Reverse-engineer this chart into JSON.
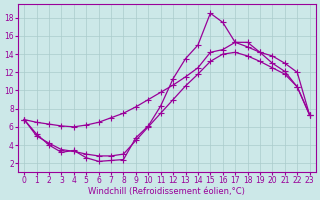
{
  "background_color": "#cce8e8",
  "grid_color": "#aacccc",
  "line_color": "#990099",
  "marker_style": "+",
  "marker_size": 4,
  "line_width": 0.9,
  "xlabel": "Windchill (Refroidissement éolien,°C)",
  "xlabel_fontsize": 6.0,
  "tick_fontsize": 5.5,
  "xlim": [
    -0.5,
    23.5
  ],
  "ylim": [
    1.0,
    19.5
  ],
  "yticks": [
    2,
    4,
    6,
    8,
    10,
    12,
    14,
    16,
    18
  ],
  "xticks": [
    0,
    1,
    2,
    3,
    4,
    5,
    6,
    7,
    8,
    9,
    10,
    11,
    12,
    13,
    14,
    15,
    16,
    17,
    18,
    19,
    20,
    21,
    22,
    23
  ],
  "curve_jagged_x": [
    0,
    1,
    2,
    3,
    4,
    5,
    6,
    7,
    8,
    9,
    10,
    11,
    12,
    13,
    14,
    15,
    16,
    17,
    18,
    19,
    20,
    21,
    22,
    23
  ],
  "curve_jagged_y": [
    6.8,
    5.2,
    4.0,
    3.2,
    3.4,
    2.6,
    2.2,
    2.3,
    2.4,
    4.8,
    6.1,
    8.3,
    11.3,
    13.5,
    15.0,
    18.5,
    17.5,
    15.3,
    15.3,
    14.2,
    13.0,
    12.1,
    10.4,
    7.3
  ],
  "curve_smooth_x": [
    0,
    1,
    2,
    3,
    4,
    5,
    6,
    7,
    8,
    9,
    10,
    11,
    12,
    13,
    14,
    15,
    16,
    17,
    18,
    19,
    20,
    21,
    22,
    23
  ],
  "curve_smooth_y": [
    6.8,
    6.5,
    6.3,
    6.1,
    6.0,
    6.2,
    6.5,
    7.0,
    7.5,
    8.2,
    9.0,
    9.8,
    10.6,
    11.5,
    12.5,
    14.2,
    14.5,
    15.3,
    14.8,
    14.2,
    13.8,
    13.0,
    12.0,
    7.3
  ],
  "curve_bottom_x": [
    0,
    1,
    2,
    3,
    4,
    5,
    6,
    7,
    8,
    9,
    10,
    11,
    12,
    13,
    14,
    15,
    16,
    17,
    18,
    19,
    20,
    21,
    22,
    23
  ],
  "curve_bottom_y": [
    6.8,
    5.0,
    4.2,
    3.5,
    3.3,
    3.0,
    2.8,
    2.8,
    3.0,
    4.5,
    6.0,
    7.5,
    9.0,
    10.5,
    11.8,
    13.2,
    14.0,
    14.2,
    13.8,
    13.2,
    12.5,
    11.8,
    10.4,
    7.3
  ]
}
